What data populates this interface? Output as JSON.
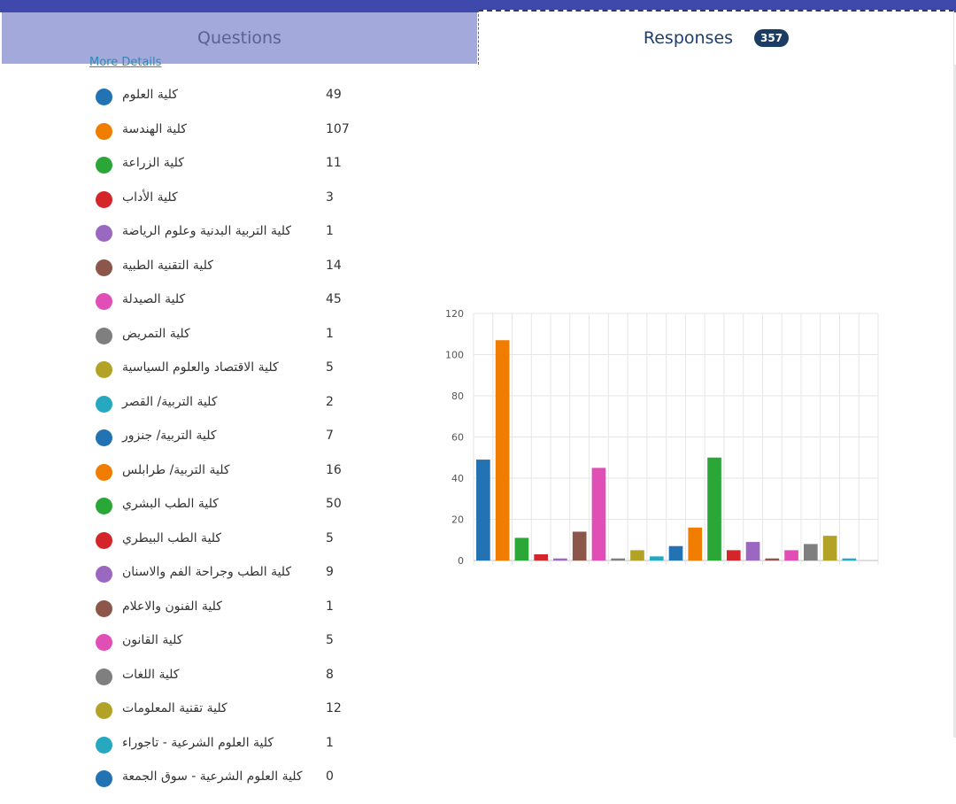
{
  "tabs": {
    "questions_label": "Questions",
    "responses_label": "Responses",
    "responses_count": "357"
  },
  "more_details_label": "More Details",
  "colors": [
    "#2272b4",
    "#f07c00",
    "#2aa737",
    "#d3252a",
    "#9b68c1",
    "#8c564b",
    "#e14eb5",
    "#7f7f7f",
    "#b2a226",
    "#26a9c0"
  ],
  "legend": [
    {
      "label": "كلية العلوم",
      "count": "49",
      "color": "#2272b4"
    },
    {
      "label": "كلية الهندسة",
      "count": "107",
      "color": "#f07c00"
    },
    {
      "label": "كلية الزراعة",
      "count": "11",
      "color": "#2aa737"
    },
    {
      "label": "كلية الأداب",
      "count": "3",
      "color": "#d3252a"
    },
    {
      "label": "كلية التربية البدنية وعلوم الرياضة",
      "count": "1",
      "color": "#9b68c1"
    },
    {
      "label": "كلية التقنية الطبية",
      "count": "14",
      "color": "#8c564b"
    },
    {
      "label": "كلية الصيدلة",
      "count": "45",
      "color": "#e14eb5"
    },
    {
      "label": "كلية التمريض",
      "count": "1",
      "color": "#7f7f7f"
    },
    {
      "label": "كلية الاقتصاد والعلوم السياسية",
      "count": "5",
      "color": "#b2a226"
    },
    {
      "label": "كلية التربية/ القصر",
      "count": "2",
      "color": "#26a9c0"
    },
    {
      "label": "كلية التربية/ جنزور",
      "count": "7",
      "color": "#2272b4"
    },
    {
      "label": "كلية التربية/ طرابلس",
      "count": "16",
      "color": "#f07c00"
    },
    {
      "label": "كلية الطب البشري",
      "count": "50",
      "color": "#2aa737"
    },
    {
      "label": "كلية الطب البيطري",
      "count": "5",
      "color": "#d3252a"
    },
    {
      "label": "كلية الطب وجراحة الفم والاسنان",
      "count": "9",
      "color": "#9b68c1"
    },
    {
      "label": "كلية الفنون والاعلام",
      "count": "1",
      "color": "#8c564b"
    },
    {
      "label": "كلية القانون",
      "count": "5",
      "color": "#e14eb5"
    },
    {
      "label": "كلية اللغات",
      "count": "8",
      "color": "#7f7f7f"
    },
    {
      "label": "كلية تقنية المعلومات",
      "count": "12",
      "color": "#b2a226"
    },
    {
      "label": "كلية العلوم الشرعية - تاجوراء",
      "count": "1",
      "color": "#26a9c0"
    },
    {
      "label": "كلية العلوم الشرعية - سوق الجمعة",
      "count": "0",
      "color": "#2272b4"
    }
  ],
  "chart_data": {
    "type": "bar",
    "categories": [
      "كلية العلوم",
      "كلية الهندسة",
      "كلية الزراعة",
      "كلية الأداب",
      "كلية التربية البدنية وعلوم الرياضة",
      "كلية التقنية الطبية",
      "كلية الصيدلة",
      "كلية التمريض",
      "كلية الاقتصاد والعلوم السياسية",
      "كلية التربية/ القصر",
      "كلية التربية/ جنزور",
      "كلية التربية/ طرابلس",
      "كلية الطب البشري",
      "كلية الطب البيطري",
      "كلية الطب وجراحة الفم والاسنان",
      "كلية الفنون والاعلام",
      "كلية القانون",
      "كلية اللغات",
      "كلية تقنية المعلومات",
      "كلية العلوم الشرعية - تاجوراء",
      "كلية العلوم الشرعية - سوق الجمعة"
    ],
    "values": [
      49,
      107,
      11,
      3,
      1,
      14,
      45,
      1,
      5,
      2,
      7,
      16,
      50,
      5,
      9,
      1,
      5,
      8,
      12,
      1,
      0
    ],
    "ylim": [
      0,
      120
    ],
    "yticks": [
      0,
      20,
      40,
      60,
      80,
      100,
      120
    ],
    "grid": true,
    "legend": "left"
  }
}
